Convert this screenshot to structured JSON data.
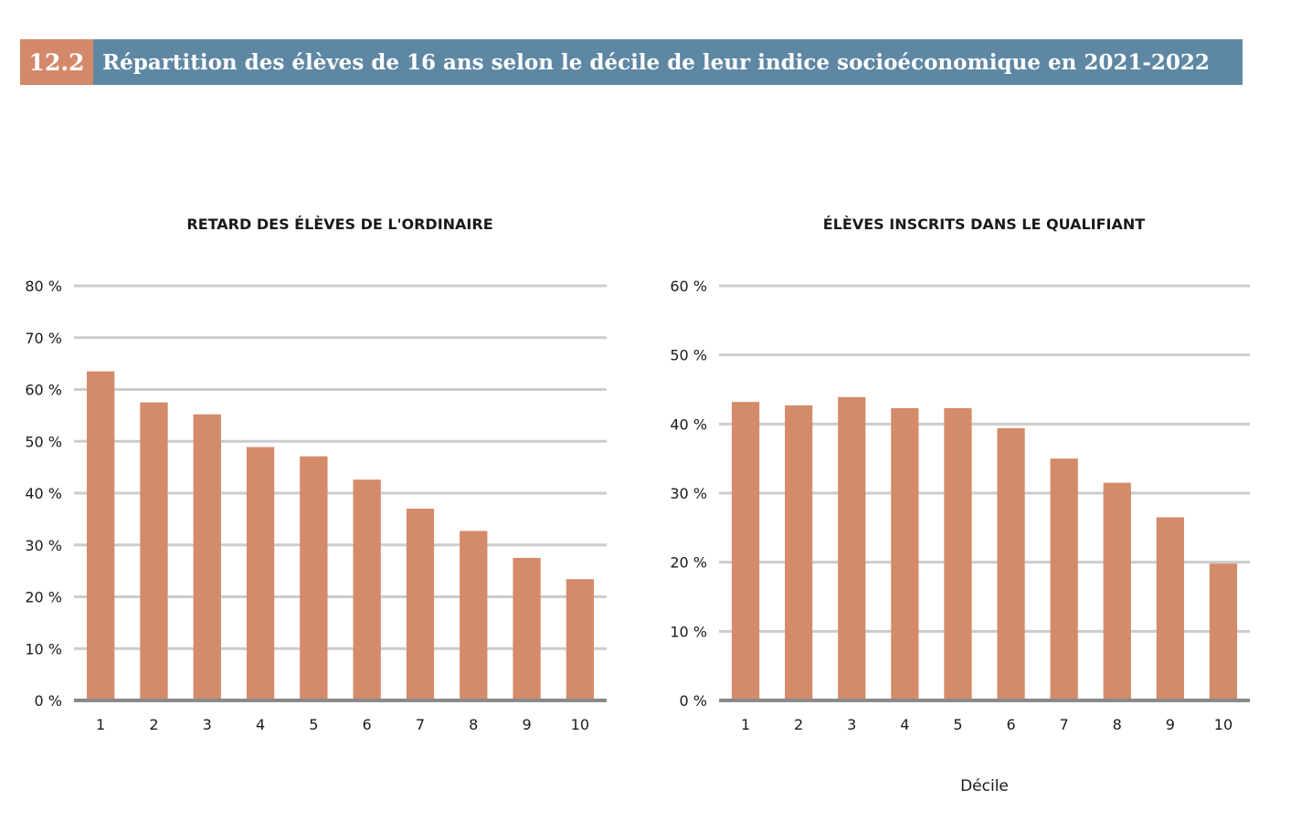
{
  "header": {
    "number": "12.2",
    "title": "Répartition des élèves de 16 ans selon le décile de leur indice socioéconomique en 2021-2022"
  },
  "colors": {
    "bar": "#d38b6a",
    "grid": "#cccccc",
    "baseline": "#8a8a8a",
    "header_number_bg": "#d4896a",
    "header_title_bg": "#5e87a3"
  },
  "chart_data": [
    {
      "type": "bar",
      "title": "RETARD DES ÉLÈVES DE L'ORDINAIRE",
      "xlabel": "",
      "ylabel": "",
      "categories": [
        "1",
        "2",
        "3",
        "4",
        "5",
        "6",
        "7",
        "8",
        "9",
        "10"
      ],
      "values": [
        63.5,
        57.5,
        55.2,
        48.9,
        47.1,
        42.6,
        37.0,
        32.7,
        27.5,
        23.4
      ],
      "ylim": [
        0,
        80
      ],
      "yticks": [
        0,
        10,
        20,
        30,
        40,
        50,
        60,
        70,
        80
      ],
      "ytick_labels": [
        "0 %",
        "10 %",
        "20 %",
        "30 %",
        "40 %",
        "50 %",
        "60 %",
        "70 %",
        "80 %"
      ],
      "grid": true
    },
    {
      "type": "bar",
      "title": "ÉLÈVES INSCRITS DANS LE QUALIFIANT",
      "xlabel": "Décile",
      "ylabel": "",
      "categories": [
        "1",
        "2",
        "3",
        "4",
        "5",
        "6",
        "7",
        "8",
        "9",
        "10"
      ],
      "values": [
        43.2,
        42.7,
        43.9,
        42.3,
        42.3,
        39.4,
        35.0,
        31.5,
        26.5,
        19.8
      ],
      "ylim": [
        0,
        60
      ],
      "yticks": [
        0,
        10,
        20,
        30,
        40,
        50,
        60
      ],
      "ytick_labels": [
        "0 %",
        "10 %",
        "20 %",
        "30 %",
        "40 %",
        "50 %",
        "60 %"
      ],
      "grid": true
    }
  ]
}
